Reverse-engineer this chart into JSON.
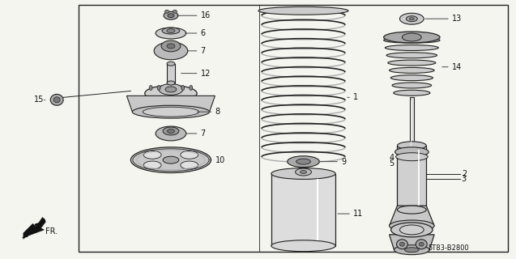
{
  "bg_color": "#f5f5f0",
  "border_color": "#222222",
  "line_color": "#222222",
  "part_color": "#999999",
  "label_color": "#111111",
  "part_code": "5T83-B2800",
  "figsize": [
    6.37,
    3.2
  ],
  "dpi": 100
}
